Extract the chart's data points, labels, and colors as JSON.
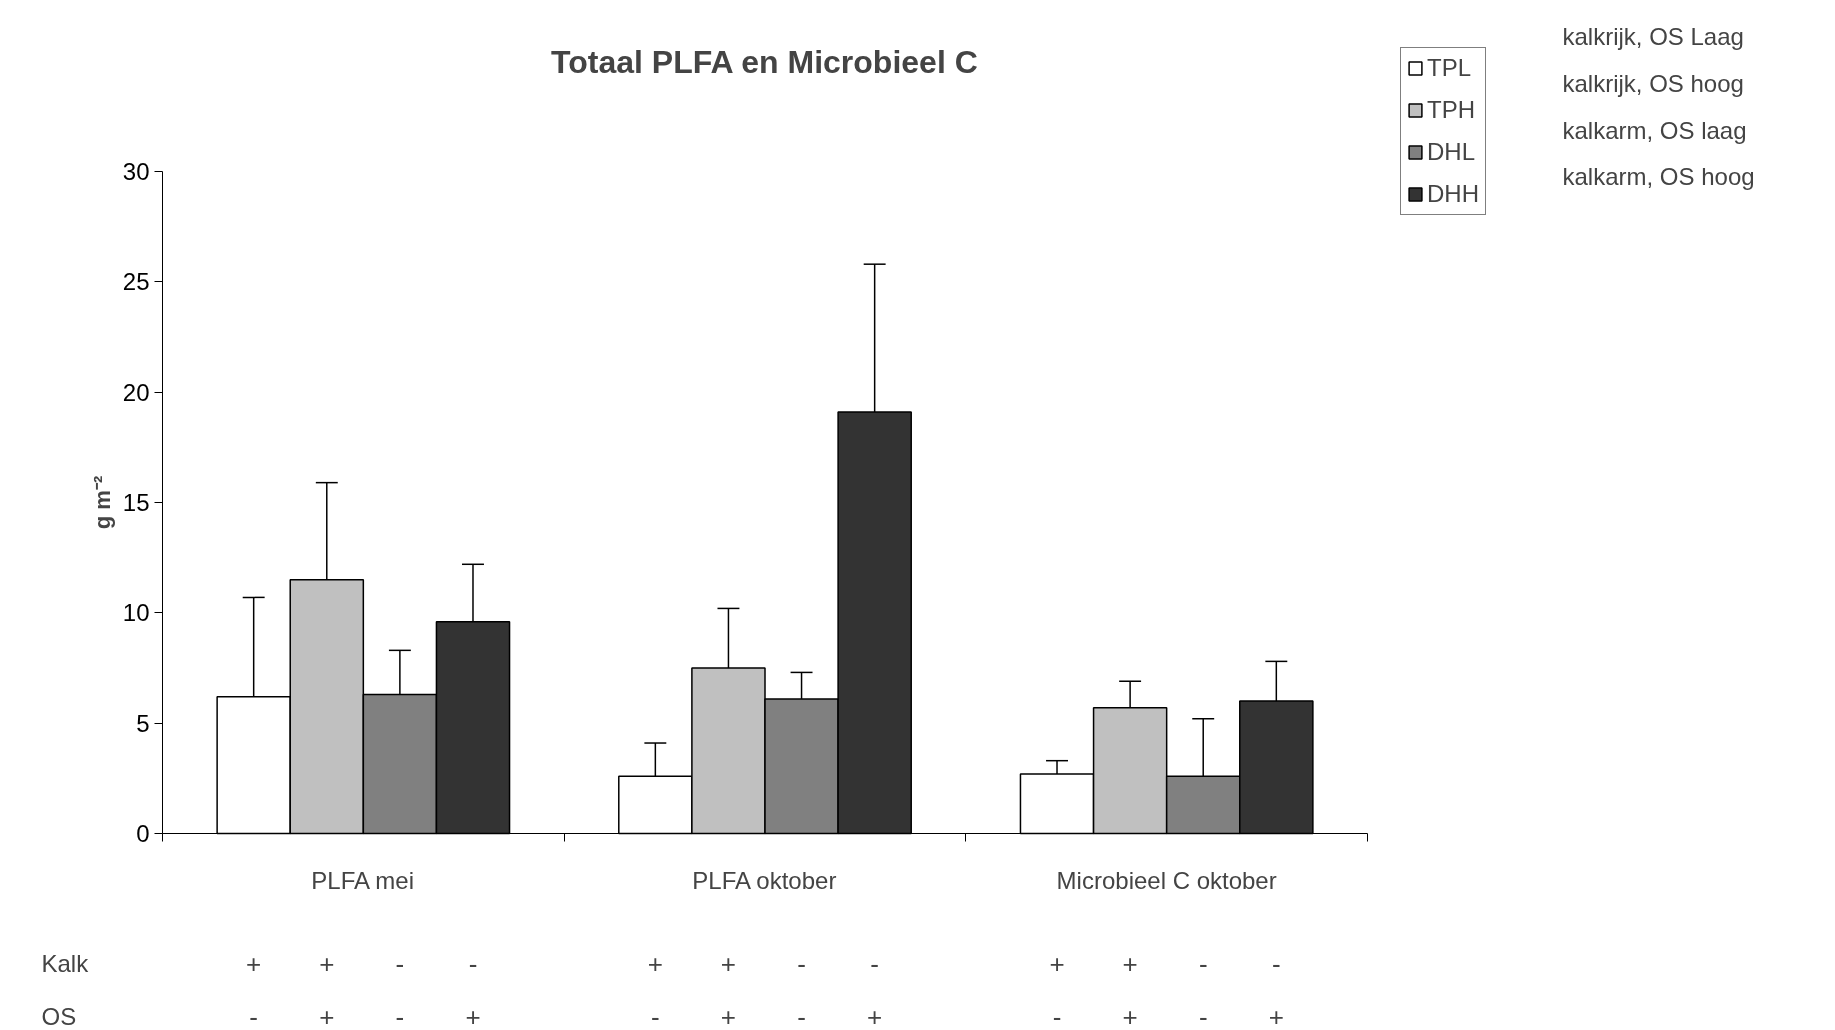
{
  "chart_data": {
    "type": "bar",
    "title": "Totaal PLFA en Microbieel C",
    "ylabel": "g m⁻²",
    "categories": [
      "PLFA mei",
      "PLFA oktober",
      "Microbieel C oktober"
    ],
    "series": [
      {
        "name": "TPL",
        "color": "#ffffff",
        "values": [
          6.2,
          2.6,
          2.7
        ],
        "errors": [
          [
            6.2,
            10.7
          ],
          [
            2.6,
            4.1
          ],
          [
            2.7,
            3.3
          ]
        ]
      },
      {
        "name": "TPH",
        "color": "#c0c0c0",
        "values": [
          11.5,
          7.5,
          5.7
        ],
        "errors": [
          [
            11.5,
            15.9
          ],
          [
            7.5,
            10.2
          ],
          [
            5.7,
            6.9
          ]
        ]
      },
      {
        "name": "DHL",
        "color": "#808080",
        "values": [
          6.3,
          6.1,
          2.6
        ],
        "errors": [
          [
            6.3,
            8.3
          ],
          [
            6.1,
            7.3
          ],
          [
            2.6,
            5.2
          ]
        ]
      },
      {
        "name": "DHH",
        "color": "#333333",
        "values": [
          9.6,
          19.1,
          6.0
        ],
        "errors": [
          [
            9.6,
            12.2
          ],
          [
            19.1,
            25.8
          ],
          [
            6.0,
            7.8
          ]
        ]
      }
    ],
    "ylim": [
      0,
      30
    ],
    "yticks": [
      0,
      5,
      10,
      15,
      20,
      25,
      30
    ],
    "legend": "top right",
    "grid": false,
    "annotations": [
      "kalkrijk, OS Laag",
      "kalkrijk, OS hoog",
      "kalkarm, OS laag",
      "kalkarm, OS hoog",
      "Kalk",
      "+ + - -",
      "+ + - -",
      "+ + - -",
      "OS",
      "- + - +",
      "- + - +",
      "- + - +"
    ]
  }
}
